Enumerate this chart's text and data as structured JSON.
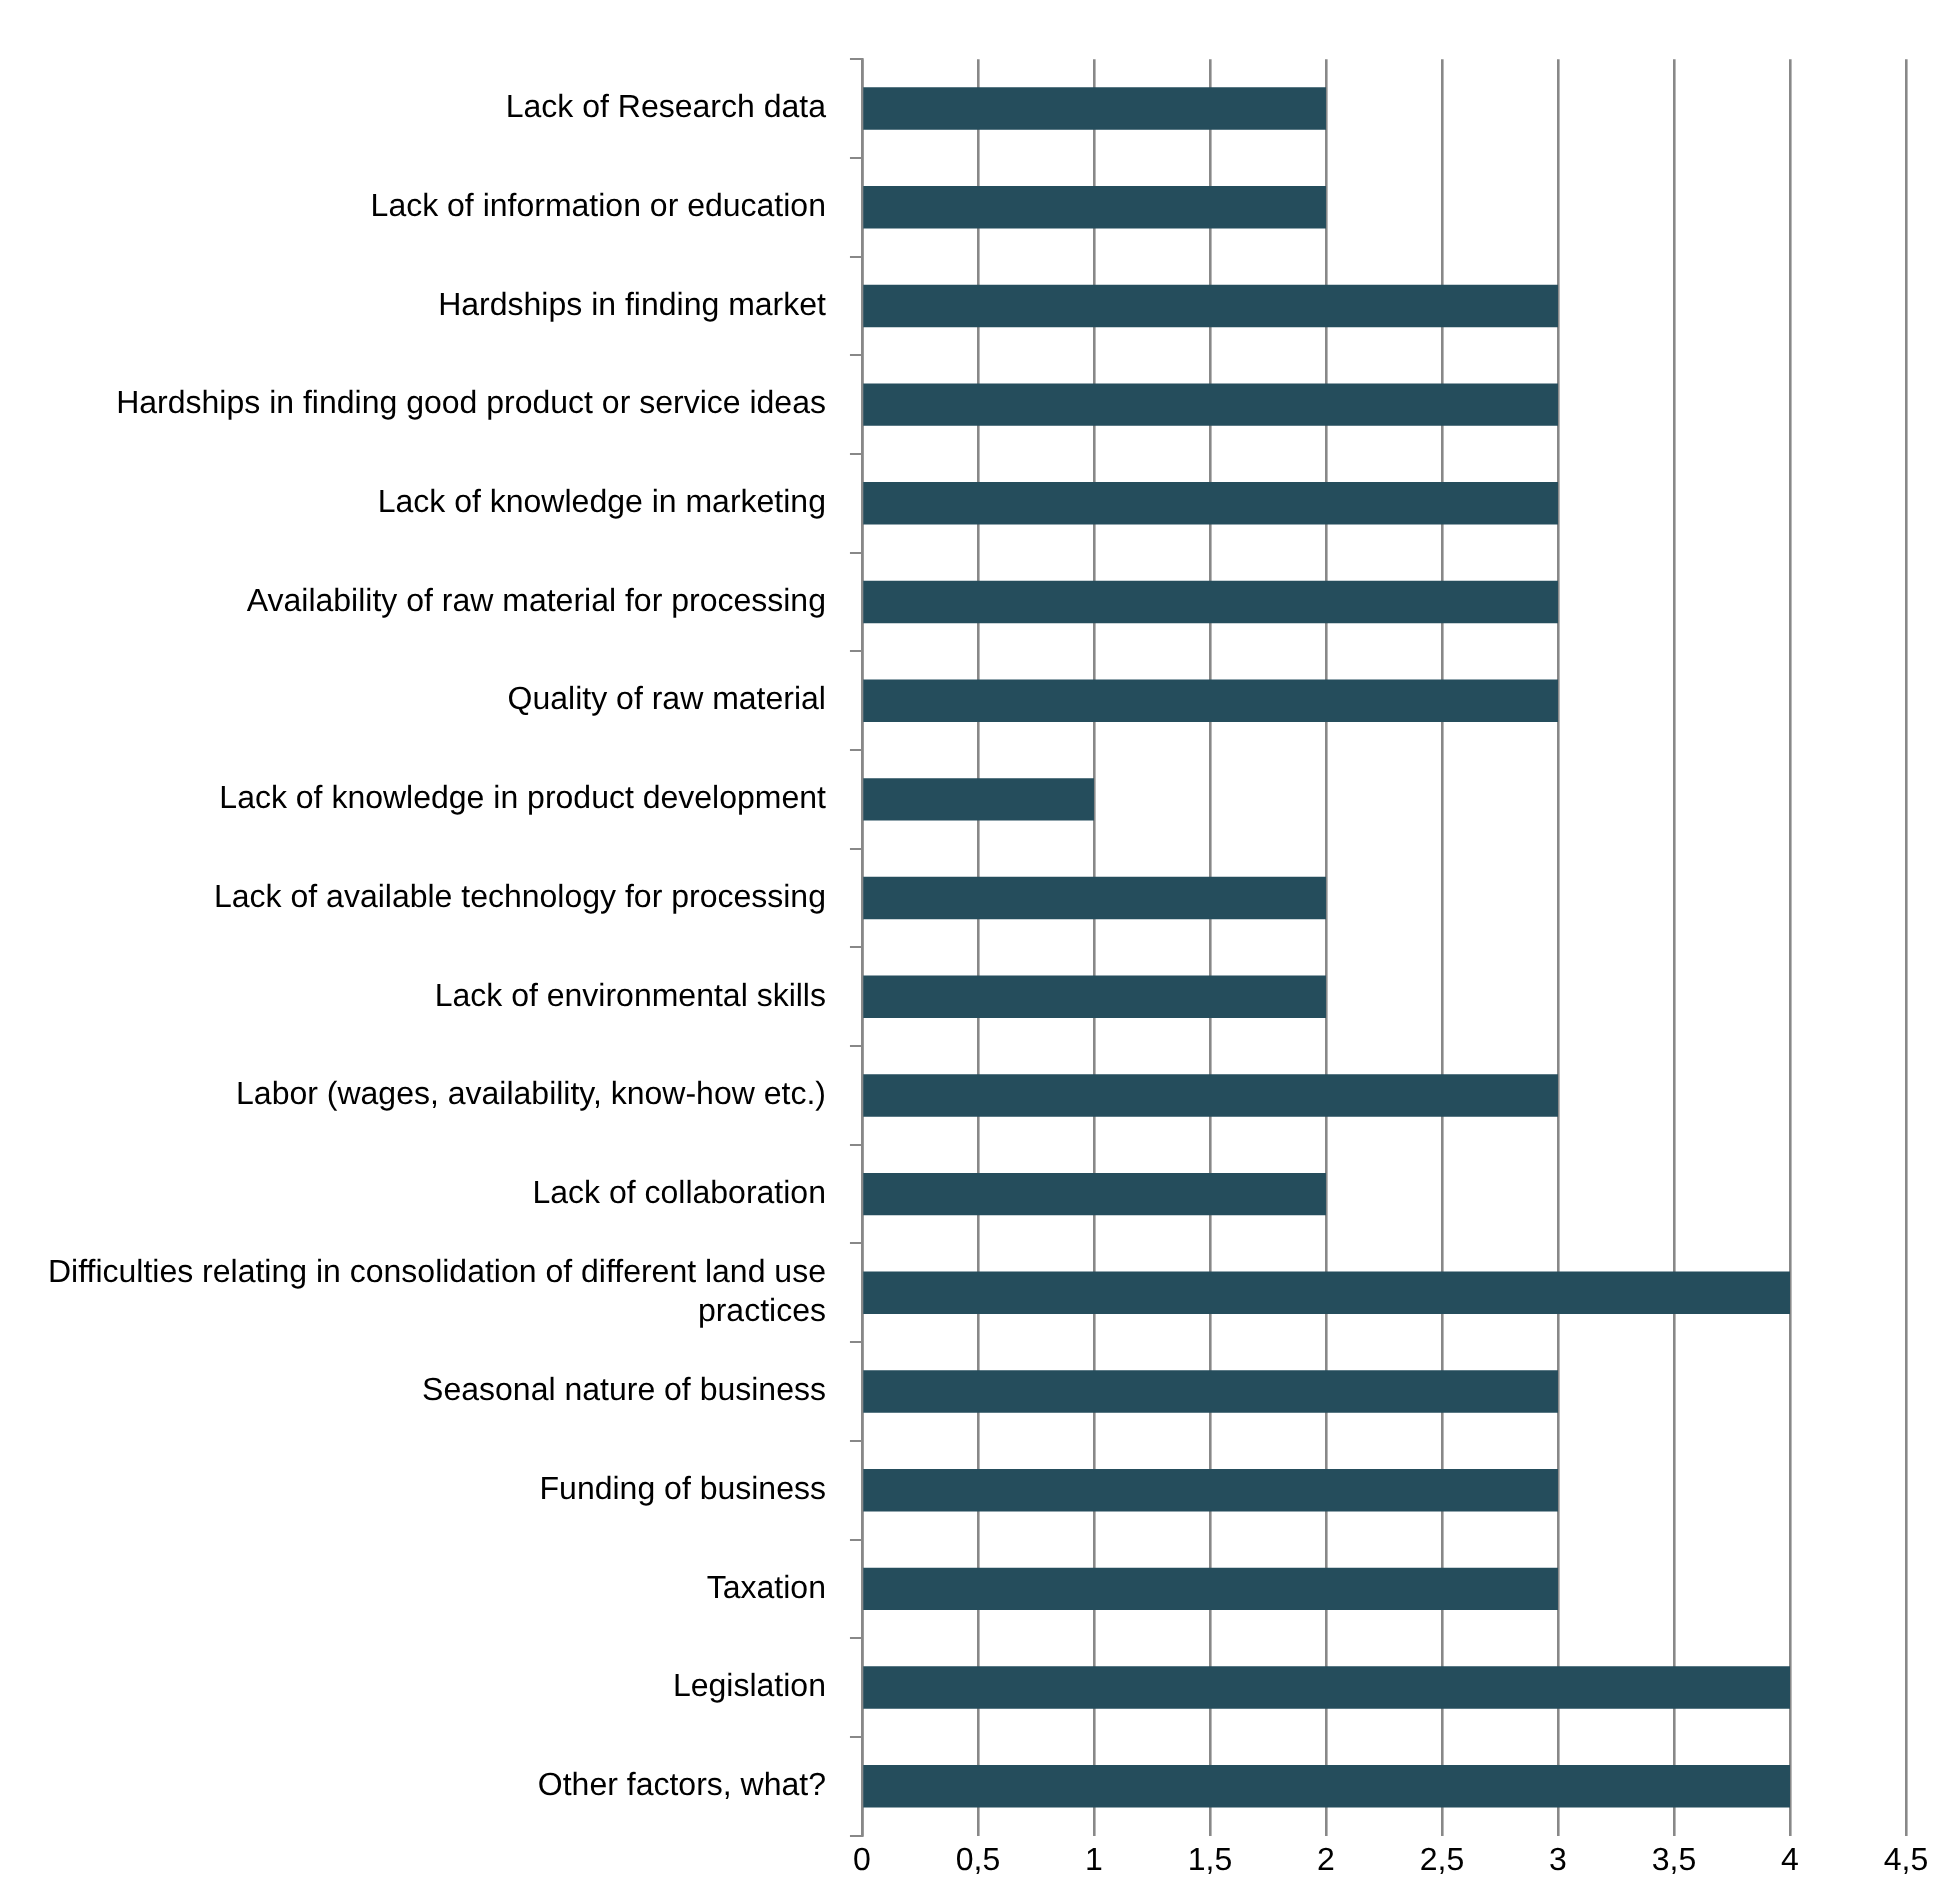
{
  "chart_data": {
    "type": "bar",
    "orientation": "horizontal",
    "categories": [
      "Lack of Research data",
      "Lack of information or education",
      "Hardships in finding market",
      "Hardships in finding good product or service ideas",
      "Lack of knowledge in marketing",
      "Availability of raw material for processing",
      "Quality of raw material",
      "Lack of knowledge in product development",
      "Lack of available technology for processing",
      "Lack of environmental skills",
      "Labor (wages, availability, know-how etc.)",
      "Lack of collaboration",
      "Difficulties relating in consolidation of different land use practices",
      "Seasonal nature of business",
      "Funding of business",
      "Taxation",
      "Legislation",
      "Other factors, what?"
    ],
    "values": [
      2,
      2,
      3,
      3,
      3,
      3,
      3,
      1,
      2,
      2,
      3,
      2,
      4,
      3,
      3,
      3,
      4,
      4
    ],
    "color": "#254d5c",
    "xlim": [
      0,
      4.5
    ],
    "xticks": [
      0,
      {
        "value": 0.5,
        "label": "0,5"
      },
      1,
      {
        "value": 1.5,
        "label": "1,5"
      },
      2,
      {
        "value": 2.5,
        "label": "2,5"
      },
      3,
      {
        "value": 3.5,
        "label": "3,5"
      },
      4,
      {
        "value": 4.5,
        "label": "4,5"
      }
    ],
    "grid": "x",
    "legend": false
  }
}
